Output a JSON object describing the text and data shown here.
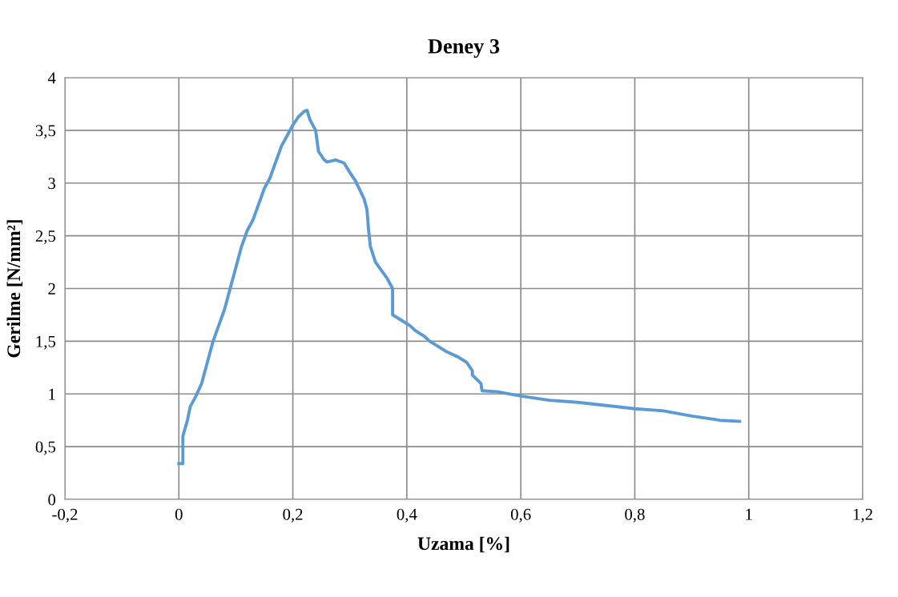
{
  "chart_data": {
    "type": "line",
    "title": "Deney 3",
    "xlabel": "Uzama [%]",
    "ylabel": "Gerilme [N/mm²]",
    "series": [
      {
        "color": "#5b9bd5",
        "x": [
          0,
          0.007,
          0.007,
          0.015,
          0.02,
          0.03,
          0.04,
          0.05,
          0.06,
          0.07,
          0.08,
          0.09,
          0.1,
          0.11,
          0.12,
          0.13,
          0.14,
          0.15,
          0.16,
          0.17,
          0.18,
          0.19,
          0.2,
          0.21,
          0.22,
          0.225,
          0.23,
          0.24,
          0.245,
          0.255,
          0.26,
          0.275,
          0.29,
          0.3,
          0.31,
          0.325,
          0.33,
          0.333,
          0.336,
          0.345,
          0.365,
          0.375,
          0.375,
          0.39,
          0.405,
          0.415,
          0.43,
          0.44,
          0.455,
          0.47,
          0.49,
          0.505,
          0.515,
          0.515,
          0.53,
          0.532,
          0.56,
          0.6,
          0.65,
          0.7,
          0.75,
          0.8,
          0.85,
          0.9,
          0.95,
          0.984
        ],
        "values": [
          0.34,
          0.34,
          0.6,
          0.75,
          0.88,
          0.98,
          1.1,
          1.3,
          1.5,
          1.65,
          1.8,
          2.0,
          2.2,
          2.4,
          2.55,
          2.65,
          2.8,
          2.95,
          3.05,
          3.2,
          3.35,
          3.45,
          3.55,
          3.63,
          3.68,
          3.69,
          3.6,
          3.5,
          3.3,
          3.22,
          3.2,
          3.22,
          3.19,
          3.1,
          3.02,
          2.85,
          2.75,
          2.55,
          2.4,
          2.25,
          2.1,
          2.0,
          1.75,
          1.7,
          1.65,
          1.6,
          1.55,
          1.5,
          1.45,
          1.4,
          1.35,
          1.3,
          1.22,
          1.18,
          1.1,
          1.03,
          1.02,
          0.98,
          0.94,
          0.92,
          0.89,
          0.86,
          0.84,
          0.79,
          0.75,
          0.74
        ]
      }
    ],
    "xlim": [
      -0.2,
      1.2
    ],
    "xticks": [
      {
        "value": -0.2,
        "label": "-0,2"
      },
      0,
      {
        "value": 0.2,
        "label": "0,2"
      },
      {
        "value": 0.4,
        "label": "0,4"
      },
      {
        "value": 0.6,
        "label": "0,6"
      },
      {
        "value": 0.8,
        "label": "0,8"
      },
      1,
      {
        "value": 1.2,
        "label": "1,2"
      }
    ],
    "ylim": [
      0,
      4
    ],
    "yticks": [
      0,
      {
        "value": 0.5,
        "label": "0,5"
      },
      1,
      {
        "value": 1.5,
        "label": "1,5"
      },
      2,
      {
        "value": 2.5,
        "label": "2,5"
      },
      3,
      {
        "value": 3.5,
        "label": "3,5"
      },
      4
    ],
    "grid": true,
    "marker": "none",
    "line_style": "solid"
  }
}
